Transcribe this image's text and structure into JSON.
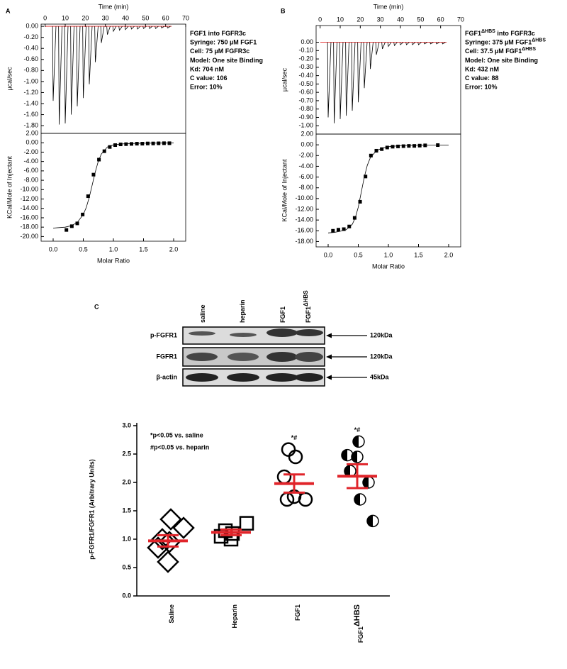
{
  "chart_data": [
    {
      "type": "itc_raw",
      "panel_label": "A",
      "xlabel": "Time (min)",
      "ylabel": "µcal/sec",
      "xlim": [
        -2,
        70
      ],
      "xticks": [
        0,
        10,
        20,
        30,
        40,
        50,
        60,
        70
      ],
      "ylim": [
        -1.94,
        0.04
      ],
      "yticks": [
        {
          "value": 0,
          "label": "0.00"
        },
        {
          "value": -0.2,
          "label": "-0.20"
        },
        {
          "value": -0.4,
          "label": "-0.40"
        },
        {
          "value": -0.6,
          "label": "-0.60"
        },
        {
          "value": -0.8,
          "label": "-0.80"
        },
        {
          "value": -1.0,
          "label": "-1.00"
        },
        {
          "value": -1.2,
          "label": "-1.20"
        },
        {
          "value": -1.4,
          "label": "-1.40"
        },
        {
          "value": -1.6,
          "label": "-1.60"
        },
        {
          "value": -1.8,
          "label": "-1.80"
        }
      ],
      "x": [
        4,
        7,
        10,
        13,
        16,
        19,
        22,
        25,
        28,
        31,
        34,
        37,
        40,
        43,
        46,
        49,
        52,
        55,
        58,
        61
      ],
      "values": [
        -1.35,
        -1.78,
        -1.76,
        -1.6,
        -1.45,
        -1.3,
        -1.05,
        -0.65,
        -0.3,
        -0.15,
        -0.09,
        -0.07,
        -0.06,
        -0.05,
        -0.05,
        -0.04,
        -0.04,
        -0.04,
        -0.03,
        -0.03
      ],
      "color": "#000000",
      "baseline_color": "#e02020",
      "annotation": [
        [
          {
            "text": "FGF1 into FGFR3c"
          }
        ],
        [
          {
            "text": "Syringe: 750 µM FGF1"
          }
        ],
        [
          {
            "text": "Cell: 75 µM FGFR3c"
          }
        ],
        [
          {
            "text": "Model: One site Binding"
          }
        ],
        [
          {
            "text": "Kd: 704 nM"
          }
        ],
        [
          {
            "text": "C value: 106"
          }
        ],
        [
          {
            "text": "Error: 10%"
          }
        ]
      ]
    },
    {
      "type": "itc_fit",
      "xlabel": "Molar Ratio",
      "ylabel": "KCal/Mole of Injectant",
      "xlim": [
        -0.2,
        2.2
      ],
      "xticks": [
        {
          "value": 0,
          "label": "0.0"
        },
        0.5,
        {
          "value": 1,
          "label": "1.0"
        },
        1.5,
        {
          "value": 2,
          "label": "2.0"
        }
      ],
      "ylim": [
        -21,
        2
      ],
      "yticks": [
        {
          "value": 2,
          "label": "2.00"
        },
        {
          "value": 0,
          "label": "0.00"
        },
        {
          "value": -2,
          "label": "-2.00"
        },
        {
          "value": -4,
          "label": "-4.00"
        },
        {
          "value": -6,
          "label": "-6.00"
        },
        {
          "value": -8,
          "label": "-8.00"
        },
        {
          "value": -10,
          "label": "-10.00"
        },
        {
          "value": -12,
          "label": "-12.00"
        },
        {
          "value": -14,
          "label": "-14.00"
        },
        {
          "value": -16,
          "label": "-16.00"
        },
        {
          "value": -18,
          "label": "-18.00"
        },
        {
          "value": -20,
          "label": "-20.00"
        }
      ],
      "x": [
        0.22,
        0.31,
        0.4,
        0.49,
        0.58,
        0.67,
        0.76,
        0.85,
        0.94,
        1.03,
        1.12,
        1.21,
        1.3,
        1.39,
        1.48,
        1.57,
        1.66,
        1.75,
        1.84,
        1.93
      ],
      "values": [
        -18.6,
        -17.8,
        -17.2,
        -15.3,
        -11.4,
        -6.8,
        -3.6,
        -1.8,
        -0.9,
        -0.5,
        -0.35,
        -0.3,
        -0.25,
        -0.2,
        -0.2,
        -0.15,
        -0.15,
        -0.12,
        -0.1,
        -0.1
      ],
      "fit_x": [
        0,
        0.1,
        0.2,
        0.3,
        0.4,
        0.5,
        0.55,
        0.6,
        0.65,
        0.7,
        0.75,
        0.8,
        0.9,
        1.0,
        1.2,
        1.5,
        2.0
      ],
      "fit_values": [
        -18.2,
        -18.1,
        -18.0,
        -17.7,
        -17.0,
        -15.3,
        -13.8,
        -11.6,
        -8.9,
        -6.2,
        -3.9,
        -2.4,
        -0.9,
        -0.45,
        -0.2,
        -0.1,
        -0.05
      ],
      "color": "#000000"
    },
    {
      "type": "itc_raw",
      "panel_label": "B",
      "xlabel": "Time (min)",
      "ylabel": "µcal/sec",
      "xlim": [
        -2,
        70
      ],
      "xticks": [
        0,
        10,
        20,
        30,
        40,
        50,
        60,
        70
      ],
      "ylim": [
        -1.1,
        0.2
      ],
      "yticks": [
        {
          "value": 0,
          "label": "0.00"
        },
        {
          "value": -0.1,
          "label": "-0.10"
        },
        {
          "value": -0.2,
          "label": "-0.20"
        },
        {
          "value": -0.3,
          "label": "-0.30"
        },
        {
          "value": -0.4,
          "label": "-0.40"
        },
        {
          "value": -0.5,
          "label": "-0.50"
        },
        {
          "value": -0.6,
          "label": "-0.60"
        },
        {
          "value": -0.7,
          "label": "-0.70"
        },
        {
          "value": -0.8,
          "label": "-0.80"
        },
        {
          "value": -0.9,
          "label": "-0.90"
        },
        {
          "value": -1.0,
          "label": "-1.00"
        }
      ],
      "x": [
        4,
        7,
        10,
        13,
        16,
        19,
        22,
        25,
        28,
        31,
        34,
        37,
        40,
        43,
        46,
        49,
        52,
        55,
        58,
        61
      ],
      "values": [
        -0.9,
        -0.97,
        -0.92,
        -0.88,
        -0.82,
        -0.72,
        -0.55,
        -0.32,
        -0.15,
        -0.08,
        -0.05,
        -0.04,
        -0.03,
        -0.03,
        -0.03,
        -0.03,
        -0.02,
        -0.02,
        -0.02,
        -0.02
      ],
      "color": "#000000",
      "baseline_color": "#e02020",
      "annotation": [
        [
          {
            "text": "FGF1"
          },
          {
            "text": "ΔHBS",
            "sup": true
          },
          {
            "text": " into FGFR3c"
          }
        ],
        [
          {
            "text": "Syringe: 375 µM FGF1"
          },
          {
            "text": "ΔHBS",
            "sup": true
          }
        ],
        [
          {
            "text": "Cell: 37.5 µM FGF1"
          },
          {
            "text": "ΔHBS",
            "sup": true
          }
        ],
        [
          {
            "text": "Model: One site Binding"
          }
        ],
        [
          {
            "text": "Kd: 432 nM"
          }
        ],
        [
          {
            "text": "C value: 88"
          }
        ],
        [
          {
            "text": "Error: 10%"
          }
        ]
      ]
    },
    {
      "type": "itc_fit",
      "xlabel": "Molar Ratio",
      "ylabel": "KCal/Mole of Injectant",
      "xlim": [
        -0.2,
        2.2
      ],
      "xticks": [
        {
          "value": 0,
          "label": "0.0"
        },
        0.5,
        {
          "value": 1,
          "label": "1.0"
        },
        1.5,
        {
          "value": 2,
          "label": "2.0"
        }
      ],
      "ylim": [
        -19,
        2
      ],
      "yticks": [
        {
          "value": 2,
          "label": "2.00"
        },
        {
          "value": 0,
          "label": "0.00"
        },
        {
          "value": -2,
          "label": "-2.00"
        },
        {
          "value": -4,
          "label": "-4.00"
        },
        {
          "value": -6,
          "label": "-6.00"
        },
        {
          "value": -8,
          "label": "-8.00"
        },
        {
          "value": -10,
          "label": "-10.00"
        },
        {
          "value": -12,
          "label": "-12.00"
        },
        {
          "value": -14,
          "label": "-14.00"
        },
        {
          "value": -16,
          "label": "-16.00"
        },
        {
          "value": -18,
          "label": "-18.00"
        }
      ],
      "x": [
        0.08,
        0.17,
        0.26,
        0.35,
        0.44,
        0.53,
        0.62,
        0.71,
        0.8,
        0.89,
        0.98,
        1.07,
        1.16,
        1.25,
        1.34,
        1.43,
        1.52,
        1.61,
        1.82
      ],
      "values": [
        -16.0,
        -15.8,
        -15.7,
        -15.2,
        -13.6,
        -10.6,
        -5.9,
        -2.0,
        -1.1,
        -0.8,
        -0.5,
        -0.35,
        -0.3,
        -0.25,
        -0.2,
        -0.2,
        -0.15,
        -0.1,
        -0.05
      ],
      "fit_x": [
        0,
        0.1,
        0.2,
        0.3,
        0.4,
        0.45,
        0.5,
        0.55,
        0.6,
        0.65,
        0.7,
        0.8,
        0.9,
        1.0,
        1.2,
        1.5,
        2.0
      ],
      "fit_values": [
        -16.4,
        -16.3,
        -16.1,
        -15.8,
        -14.8,
        -13.6,
        -11.6,
        -8.8,
        -6.0,
        -3.8,
        -2.4,
        -1.1,
        -0.6,
        -0.35,
        -0.15,
        -0.08,
        -0.05
      ],
      "color": "#000000"
    },
    {
      "type": "blot",
      "panel_label": "C",
      "lanes": [
        [
          {
            "text": "saline"
          }
        ],
        [
          {
            "text": "heparin"
          }
        ],
        [
          {
            "text": "FGF1"
          }
        ],
        [
          {
            "text": "FGF1"
          },
          {
            "text": "ΔHBS",
            "sup": true
          }
        ]
      ],
      "rows": [
        {
          "label": "p-FGFR1",
          "size": "120kDa"
        },
        {
          "label": "FGFR1",
          "size": "120kDa"
        },
        {
          "label": "β-actin",
          "size": "45kDa"
        }
      ]
    },
    {
      "type": "dot",
      "ylabel": "p-FGFR1/FGFR1 (Arbitrary Units)",
      "categories": [
        "Saline",
        "Heparin",
        "FGF1",
        "FGF1"
      ],
      "category_superscripts": [
        null,
        null,
        null,
        "ΔHBS"
      ],
      "values": [
        [
          1.35,
          1.2,
          1.0,
          0.95,
          0.85,
          0.6
        ],
        [
          1.28,
          1.15,
          1.1,
          1.05,
          1.0
        ],
        [
          2.58,
          2.45,
          2.1,
          1.75,
          1.7,
          1.7
        ],
        [
          2.72,
          2.48,
          2.45,
          2.2,
          2.0,
          1.7,
          1.32
        ]
      ],
      "markers": [
        "diamond",
        "square",
        "circle",
        "half-circle"
      ],
      "mean": [
        0.97,
        1.12,
        1.98,
        2.11
      ],
      "sem": [
        0.1,
        0.05,
        0.16,
        0.21
      ],
      "mean_color": "#e0242a",
      "significance": [
        null,
        null,
        "*#",
        "*#"
      ],
      "annotations": [
        "*p<0.05 vs. saline",
        "#p<0.05 vs. heparin"
      ],
      "ylim": [
        0,
        3.05
      ],
      "yticks": [
        {
          "value": 0,
          "label": "0.0"
        },
        0.5,
        {
          "value": 1,
          "label": "1.0"
        },
        1.5,
        {
          "value": 2,
          "label": "2.0"
        },
        2.5,
        {
          "value": 3,
          "label": "3.0"
        }
      ]
    }
  ]
}
